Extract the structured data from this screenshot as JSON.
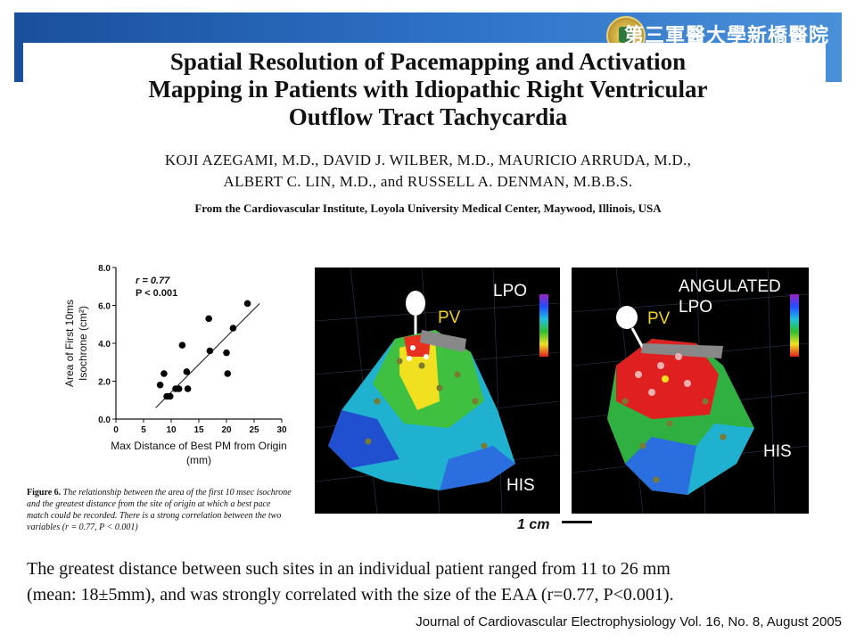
{
  "header": {
    "hospital_name": "第三軍醫大學新橋醫院"
  },
  "paper": {
    "title_lines": [
      "Spatial Resolution of Pacemapping and Activation",
      "Mapping in Patients with Idiopathic Right Ventricular",
      "Outflow Tract Tachycardia"
    ],
    "authors_lines": [
      "KOJI AZEGAMI, M.D., DAVID J. WILBER, M.D., MAURICIO ARRUDA, M.D.,",
      "ALBERT C. LIN, M.D., and RUSSELL A. DENMAN, M.B.B.S."
    ],
    "affiliation": "From the Cardiovascular Institute, Loyola University Medical Center, Maywood, Illinois, USA"
  },
  "chart_data": {
    "type": "scatter",
    "xlabel_lines": [
      "Max Distance of Best PM from Origin",
      "(mm)"
    ],
    "ylabel_lines": [
      "Area of First 10ms",
      "Isochrone (cm²)"
    ],
    "x_ticks": [
      "0",
      "5",
      "10",
      "15",
      "20",
      "25",
      "30"
    ],
    "y_ticks": [
      "0.0",
      "2.0",
      "4.0",
      "6.0",
      "8.0"
    ],
    "xlim": [
      0,
      30
    ],
    "ylim": [
      0,
      8
    ],
    "annotation_r": "r = 0.77",
    "annotation_p": "P < 0.001",
    "points": [
      {
        "x": 8.0,
        "y": 1.8
      },
      {
        "x": 8.7,
        "y": 2.4
      },
      {
        "x": 9.2,
        "y": 1.2
      },
      {
        "x": 9.8,
        "y": 1.2
      },
      {
        "x": 10.8,
        "y": 1.6
      },
      {
        "x": 11.4,
        "y": 1.6
      },
      {
        "x": 12.0,
        "y": 3.9
      },
      {
        "x": 12.8,
        "y": 2.5
      },
      {
        "x": 13.0,
        "y": 1.6
      },
      {
        "x": 16.8,
        "y": 5.3
      },
      {
        "x": 17.0,
        "y": 3.6
      },
      {
        "x": 20.0,
        "y": 3.5
      },
      {
        "x": 20.2,
        "y": 2.4
      },
      {
        "x": 21.2,
        "y": 4.8
      },
      {
        "x": 23.8,
        "y": 6.1
      }
    ],
    "trendline": {
      "x": [
        7.2,
        26.0
      ],
      "y": [
        0.6,
        6.1
      ]
    }
  },
  "caption": {
    "figure_label": "Figure 6.",
    "lines": [
      " The relationship between the area of the first 10 msec isochrone",
      "and the greatest distance from the site of origin at which a best pace",
      "match could be recorded. There is a strong correlation between the two",
      "variables (r = 0.77, P < 0.001)"
    ]
  },
  "maps": {
    "left": {
      "label_view": "LPO",
      "label_pv": "PV",
      "label_his": "HIS"
    },
    "right": {
      "label_view_1": "ANGULATED",
      "label_view_2": "LPO",
      "label_pv": "PV",
      "label_his": "HIS"
    },
    "scale_label": "1 cm"
  },
  "body_text_lines": [
    "The greatest distance between such sites in an individual patient ranged from 11 to 26 mm",
    "(mean: 18±5mm), and was strongly correlated with the size of the EAA (r=0.77, P<0.001)."
  ],
  "journal": "Journal of Cardiovascular Electrophysiology Vol. 16, No. 8, August 2005"
}
